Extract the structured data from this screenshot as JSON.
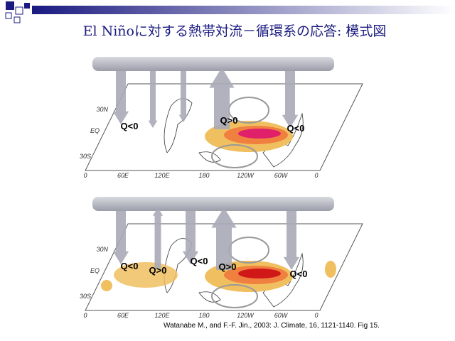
{
  "header": {
    "title": "El Niñoに対する熱帯対流－循環系の応答: 模式図"
  },
  "panels": [
    {
      "lat_labels": [
        "30N",
        "EQ",
        "30S"
      ],
      "lon_labels": [
        "0",
        "60E",
        "120E",
        "180",
        "120W",
        "60W",
        "0"
      ],
      "q_labels": [
        "Q<0",
        "Q>0",
        "Q<0"
      ]
    },
    {
      "lat_labels": [
        "30N",
        "EQ",
        "30S"
      ],
      "lon_labels": [
        "0",
        "60E",
        "120E",
        "180",
        "120W",
        "60W",
        "0"
      ],
      "q_labels": [
        "Q<0",
        "Q>0",
        "Q<0",
        "Q>0",
        "Q<0"
      ]
    }
  ],
  "citation": "Watanabe M., and F.-F. Jin., 2003:  J. Climate, 16, 1121-1140. Fig 15."
}
